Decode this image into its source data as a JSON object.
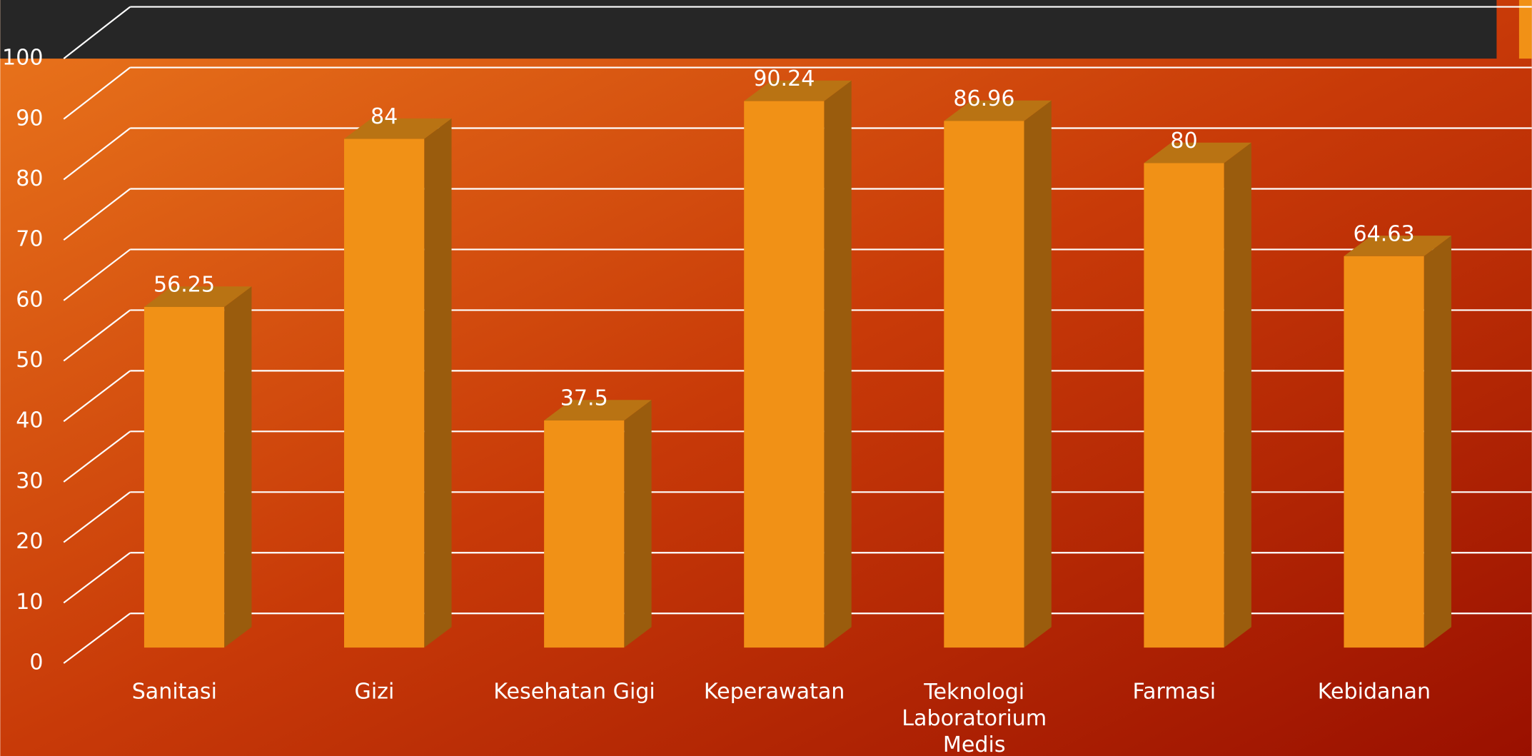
{
  "chart_data": {
    "type": "bar3d",
    "categories": [
      "Sanitasi",
      "Gizi",
      "Kesehatan Gigi",
      "Keperawatan",
      "Teknologi Laboratorium Medis",
      "Farmasi",
      "Kebidanan"
    ],
    "values": [
      56.25,
      84,
      37.5,
      90.24,
      86.96,
      80,
      64.63
    ],
    "color": "#f19116",
    "ylim": [
      0,
      100
    ],
    "yticks": [
      0,
      10,
      20,
      30,
      40,
      50,
      60,
      70,
      80,
      90,
      100
    ],
    "grid": true
  }
}
